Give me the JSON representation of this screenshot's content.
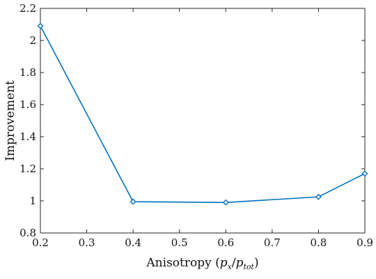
{
  "chart_data": {
    "type": "line",
    "title": "",
    "xlabel": {
      "prefix": "Anisotropy (",
      "num_base": "p",
      "num_sub": "x",
      "slash": "/",
      "den_base": "p",
      "den_sub": "tot",
      "suffix": ")"
    },
    "ylabel": "Improvement",
    "xlim": [
      0.2,
      0.9
    ],
    "ylim": [
      0.8,
      2.2
    ],
    "xticks": [
      0.2,
      0.3,
      0.4,
      0.5,
      0.6,
      0.7,
      0.8,
      0.9
    ],
    "xtick_labels": [
      "0.2",
      "0.3",
      "0.4",
      "0.5",
      "0.6",
      "0.7",
      "0.8",
      "0.9"
    ],
    "yticks": [
      0.8,
      1.0,
      1.2,
      1.4,
      1.6,
      1.8,
      2.0,
      2.2
    ],
    "ytick_labels": [
      "0.8",
      "1",
      "1.2",
      "1.4",
      "1.6",
      "1.8",
      "2",
      "2.2"
    ],
    "grid": false,
    "marker": "diamond",
    "series": [
      {
        "color": "#0072BD",
        "x": [
          0.2,
          0.4,
          0.6,
          0.8,
          0.9
        ],
        "y": [
          2.09,
          0.995,
          0.99,
          1.025,
          1.17
        ]
      }
    ]
  }
}
